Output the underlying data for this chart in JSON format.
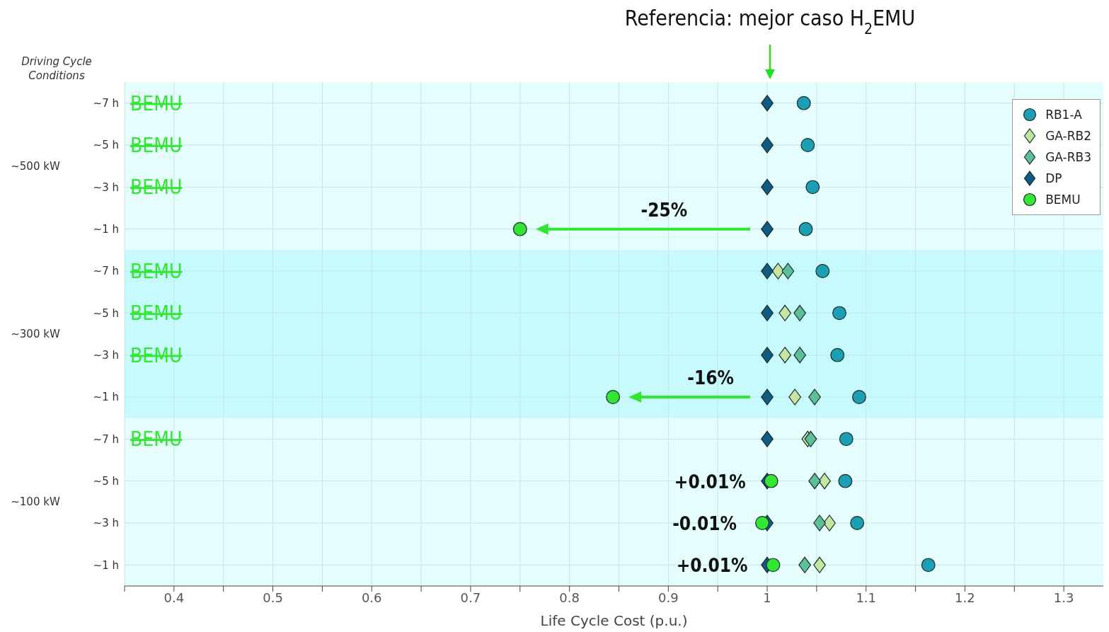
{
  "chart_data": {
    "type": "scatter",
    "orientation": "horizontal",
    "xlabel": "Life Cycle Cost (p.u.)",
    "ylabel": "Driving Cycle Conditions",
    "categories": [
      "~7 h",
      "~5 h",
      "~3 h",
      "~1 h",
      "~7 h",
      "~5 h",
      "~3 h",
      "~1 h",
      "~7 h",
      "~5 h",
      "~3 h",
      "~1 h"
    ],
    "xlim": [
      0.35,
      1.34
    ],
    "xticks": [
      {
        "value": 0.35,
        "label": null
      },
      0.4,
      {
        "value": 0.45,
        "label": null
      },
      0.5,
      {
        "value": 0.55,
        "label": null
      },
      0.6,
      {
        "value": 0.65,
        "label": null
      },
      0.7,
      {
        "value": 0.75,
        "label": null
      },
      0.8,
      {
        "value": 0.85,
        "label": null
      },
      0.9,
      {
        "value": 0.95,
        "label": null
      },
      1,
      {
        "value": 1.05,
        "label": null
      },
      1.1,
      {
        "value": 1.15,
        "label": null
      },
      1.2,
      {
        "value": 1.25,
        "label": null
      },
      1.3
    ],
    "grid": true,
    "legend": "top right",
    "annotations": [
      "~500 kW",
      "~300 kW",
      "~100 kW",
      "-25%",
      "-16%",
      "+0.01%",
      "-0.01%",
      "+0.01%"
    ],
    "title": "Referencia: mejor caso H$_{2}$EMU",
    "series": [
      {
        "name": "RB1-A",
        "color": "#1a9fb4",
        "marker": "circle",
        "values": [
          1.037,
          1.041,
          1.046,
          1.039,
          1.056,
          1.073,
          1.071,
          1.093,
          1.08,
          1.079,
          1.091,
          1.163
        ]
      },
      {
        "name": "GA-RB2",
        "color": "#c4e6a0",
        "marker": "diamond",
        "values": [
          null,
          null,
          null,
          null,
          1.011,
          1.018,
          1.018,
          1.028,
          1.041,
          1.058,
          1.063,
          1.053
        ]
      },
      {
        "name": "GA-RB3",
        "color": "#5bbf98",
        "marker": "diamond",
        "values": [
          null,
          null,
          null,
          null,
          1.021,
          1.033,
          1.033,
          1.048,
          1.044,
          1.048,
          1.053,
          1.038
        ]
      },
      {
        "name": "DP",
        "color": "#0f5b82",
        "marker": "diamond",
        "values": [
          1,
          1,
          1,
          1,
          1,
          1,
          1,
          1,
          1,
          1,
          1,
          1
        ]
      },
      {
        "name": "BEMU",
        "color": "#33e633",
        "marker": "circle",
        "values": [
          null,
          null,
          null,
          0.75,
          null,
          null,
          null,
          0.844,
          null,
          1.004,
          0.995,
          1.006
        ],
        "value_labels": [
          "BEMU",
          "BEMU",
          "BEMU",
          null,
          "BEMU",
          "BEMU",
          "BEMU",
          null,
          "BEMU",
          null,
          null,
          null
        ]
      }
    ]
  }
}
